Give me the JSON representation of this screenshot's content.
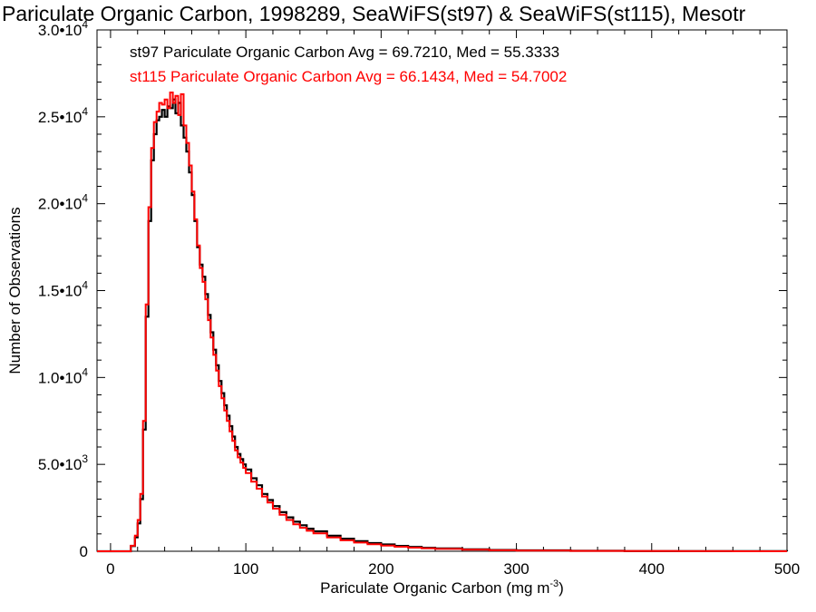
{
  "chart_data": {
    "type": "line",
    "title": "Pariculate Organic Carbon, 1998289, SeaWiFS(st97) & SeaWiFS(st115), Mesotr",
    "xlabel": "Pariculate Organic Carbon (mg m",
    "xlabel_sup": "-3",
    "xlabel_end": ")",
    "ylabel": "Number of Observations",
    "xlim": [
      -10,
      500
    ],
    "ylim": [
      0,
      30000
    ],
    "x_ticks": [
      {
        "value": 0,
        "label": "0"
      },
      {
        "value": 100,
        "label": "100"
      },
      {
        "value": 200,
        "label": "200"
      },
      {
        "value": 300,
        "label": "300"
      },
      {
        "value": 400,
        "label": "400"
      },
      {
        "value": 500,
        "label": "500"
      }
    ],
    "y_ticks": [
      {
        "value": 0,
        "mantissa": "0",
        "exp": ""
      },
      {
        "value": 5000,
        "mantissa": "5.0•10",
        "exp": "3"
      },
      {
        "value": 10000,
        "mantissa": "1.0•10",
        "exp": "4"
      },
      {
        "value": 15000,
        "mantissa": "1.5•10",
        "exp": "4"
      },
      {
        "value": 20000,
        "mantissa": "2.0•10",
        "exp": "4"
      },
      {
        "value": 25000,
        "mantissa": "2.5•10",
        "exp": "4"
      },
      {
        "value": 30000,
        "mantissa": "3.0•10",
        "exp": "4"
      }
    ],
    "annotations": [
      {
        "text": "st97 Pariculate Organic Carbon Avg = 69.7210, Med = 55.3333",
        "color": "#000000"
      },
      {
        "text": "st115 Pariculate Organic Carbon Avg = 66.1434, Med = 54.7002",
        "color": "#ff0000"
      }
    ],
    "series": [
      {
        "name": "st97",
        "color": "#000000",
        "x": [
          -10,
          10,
          15,
          18,
          20,
          22,
          24,
          26,
          28,
          30,
          32,
          34,
          36,
          38,
          40,
          42,
          44,
          46,
          48,
          50,
          52,
          54,
          56,
          58,
          60,
          62,
          64,
          66,
          68,
          70,
          72,
          74,
          76,
          78,
          80,
          82,
          84,
          86,
          88,
          90,
          92,
          94,
          96,
          98,
          100,
          104,
          108,
          112,
          116,
          120,
          125,
          130,
          135,
          140,
          145,
          150,
          160,
          170,
          180,
          190,
          200,
          210,
          220,
          230,
          240,
          260,
          280,
          300,
          340,
          380,
          420,
          460,
          500
        ],
        "values": [
          0,
          0,
          300,
          800,
          1600,
          3000,
          7000,
          13500,
          19000,
          22500,
          24000,
          24800,
          25000,
          25400,
          25000,
          25600,
          25500,
          26000,
          25200,
          25800,
          24500,
          23800,
          23000,
          21800,
          20500,
          19000,
          17500,
          16500,
          15800,
          14800,
          13600,
          12600,
          11600,
          10700,
          9800,
          9100,
          8400,
          7800,
          7200,
          6600,
          6000,
          5600,
          5300,
          5000,
          4700,
          4200,
          3800,
          3300,
          2950,
          2600,
          2250,
          1950,
          1700,
          1500,
          1300,
          1150,
          900,
          720,
          580,
          470,
          390,
          310,
          250,
          200,
          160,
          110,
          75,
          50,
          25,
          12,
          6,
          3,
          0
        ]
      },
      {
        "name": "st115",
        "color": "#ff0000",
        "x": [
          -10,
          10,
          15,
          18,
          20,
          22,
          24,
          26,
          28,
          30,
          32,
          34,
          36,
          38,
          40,
          42,
          44,
          46,
          48,
          50,
          52,
          54,
          56,
          58,
          60,
          62,
          64,
          66,
          68,
          70,
          72,
          74,
          76,
          78,
          80,
          82,
          84,
          86,
          88,
          90,
          92,
          94,
          96,
          98,
          100,
          104,
          108,
          112,
          116,
          120,
          125,
          130,
          135,
          140,
          145,
          150,
          160,
          170,
          180,
          190,
          200,
          210,
          220,
          230,
          240,
          260,
          280,
          300,
          340,
          380,
          420,
          460,
          500
        ],
        "values": [
          0,
          0,
          320,
          900,
          1800,
          3300,
          7500,
          14200,
          19800,
          23200,
          24700,
          25300,
          25800,
          25700,
          26000,
          25500,
          26400,
          25800,
          26200,
          25100,
          26300,
          24500,
          23500,
          22200,
          20700,
          19100,
          17600,
          16300,
          15500,
          14500,
          13300,
          12300,
          11300,
          10400,
          9500,
          8800,
          8100,
          7500,
          6900,
          6350,
          5800,
          5400,
          5100,
          4800,
          4500,
          4000,
          3600,
          3150,
          2800,
          2450,
          2100,
          1800,
          1550,
          1350,
          1180,
          1030,
          800,
          630,
          500,
          400,
          330,
          260,
          210,
          170,
          135,
          90,
          60,
          40,
          20,
          9,
          4,
          2,
          0
        ]
      }
    ]
  }
}
